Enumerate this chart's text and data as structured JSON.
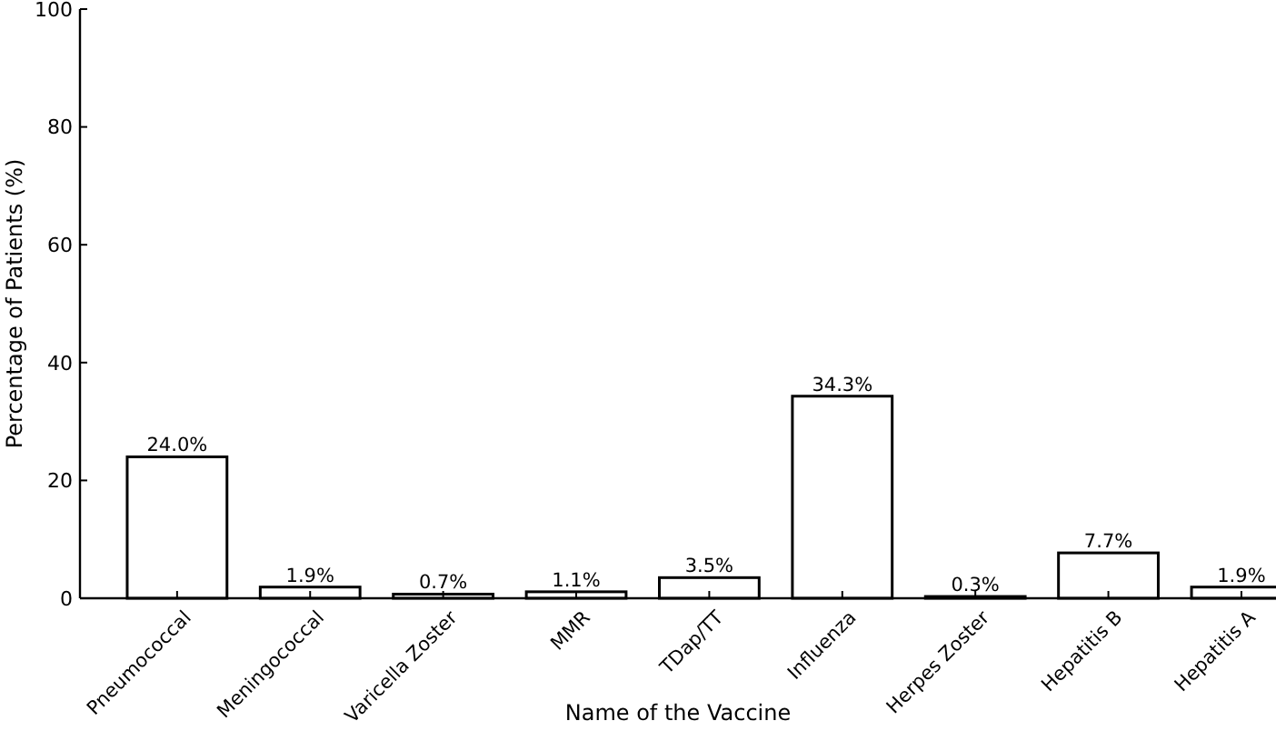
{
  "chart_data": {
    "type": "bar",
    "xlabel": "Name of the Vaccine",
    "ylabel": "Percentage of Patients (%)",
    "categories": [
      "Pneumococcal",
      "Meningococcal",
      "Varicella Zoster",
      "MMR",
      "TDap/TT",
      "Influenza",
      "Herpes Zoster",
      "Hepatitis B",
      "Hepatitis A"
    ],
    "values": [
      24.0,
      1.9,
      0.7,
      1.1,
      3.5,
      34.3,
      0.3,
      7.7,
      1.9
    ],
    "value_labels": [
      "24.0%",
      "1.9%",
      "0.7%",
      "1.1%",
      "3.5%",
      "34.3%",
      "0.3%",
      "7.7%",
      "1.9%"
    ],
    "color": "#ffffff",
    "ylim": [
      0,
      100
    ],
    "yticks": [
      0,
      20,
      40,
      60,
      80,
      100
    ],
    "grid": false
  }
}
